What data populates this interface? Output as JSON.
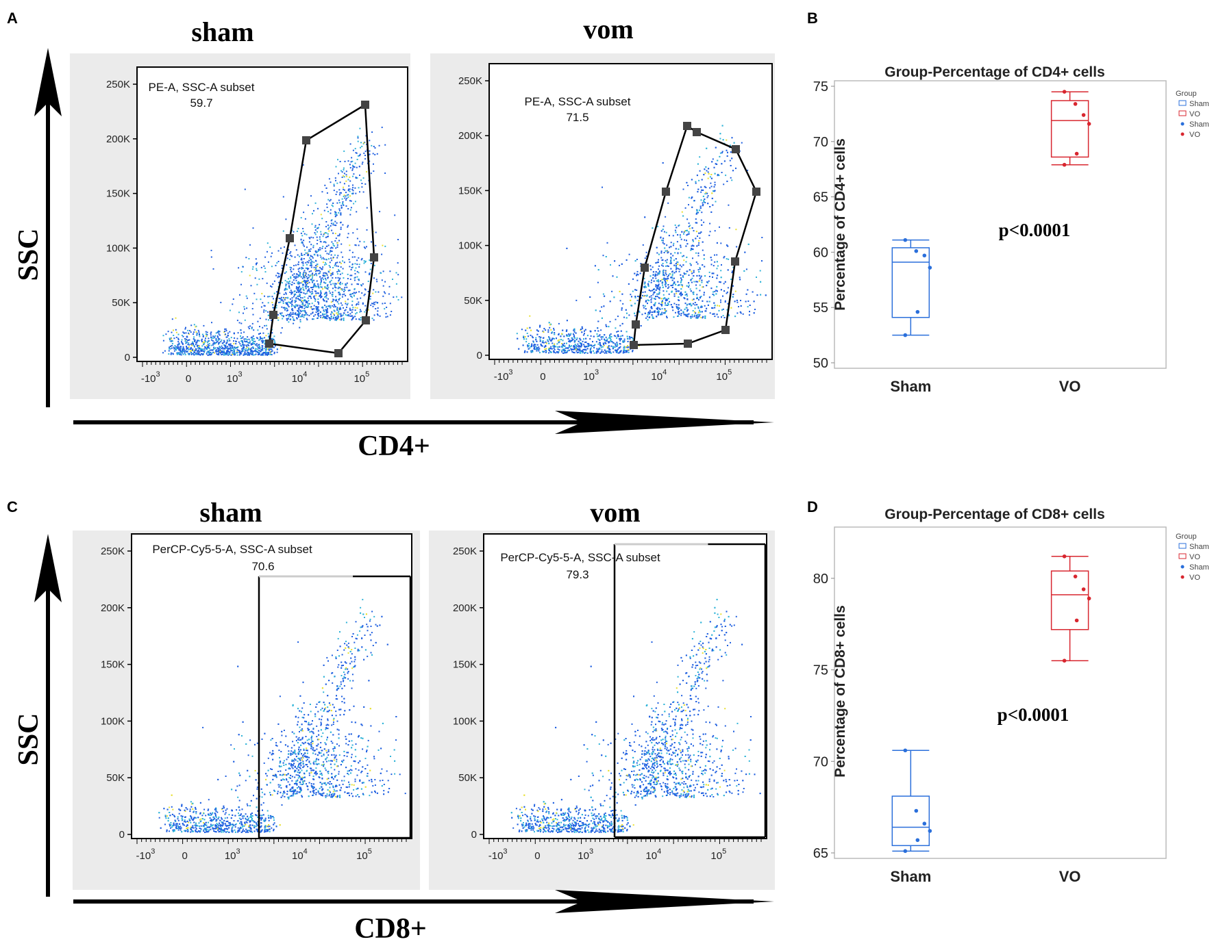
{
  "panels": {
    "a": "A",
    "b": "B",
    "c": "C",
    "d": "D"
  },
  "flow": {
    "ssc_label": "SSC",
    "cd4_axis_label": "CD4+",
    "cd8_axis_label": "CD8+",
    "y_ticks": [
      "250K",
      "200K",
      "150K",
      "100K",
      "50K",
      "0"
    ],
    "x_ticks": [
      {
        "base": "-10",
        "exp": "3"
      },
      {
        "base": "0",
        "exp": ""
      },
      {
        "base": "10",
        "exp": "3"
      },
      {
        "base": "10",
        "exp": "4"
      },
      {
        "base": "10",
        "exp": "5"
      }
    ],
    "plots": [
      {
        "id": "cd4-sham",
        "title": "sham",
        "gate_label": "PE-A, SSC-A subset",
        "gate_value": "59.7"
      },
      {
        "id": "cd4-vom",
        "title": "vom",
        "gate_label": "PE-A, SSC-A subset",
        "gate_value": "71.5"
      },
      {
        "id": "cd8-sham",
        "title": "sham",
        "gate_label": "PerCP-Cy5-5-A, SSC-A subset",
        "gate_value": "70.6"
      },
      {
        "id": "cd8-vom",
        "title": "vom",
        "gate_label": "PerCP-Cy5-5-A, SSC-A subset",
        "gate_value": "79.3"
      }
    ]
  },
  "colors": {
    "sham": "#2a6fdb",
    "vo": "#d8262f",
    "dots_blue": "#1f5fe0",
    "dots_cyan": "#2fb3d8",
    "dots_yellow": "#e8e030",
    "panel_bg": "#ebebeb",
    "gate_node": "#444444"
  },
  "chart_data": [
    {
      "type": "box",
      "title": "Group-Percentage of CD4+ cells",
      "ylabel": "Percentage of CD4+ cells",
      "xlabel": "",
      "ylim": [
        50,
        75
      ],
      "yticks": [
        50,
        55,
        60,
        65,
        70,
        75
      ],
      "categories": [
        "Sham",
        "VO"
      ],
      "legend_title": "Group",
      "legend": [
        "Sham",
        "VO",
        "Sham",
        "VO"
      ],
      "annotation": "p<0.0001",
      "series": [
        {
          "name": "Sham",
          "min": 52.5,
          "q1": 54.1,
          "median": 59.1,
          "q3": 60.4,
          "max": 61.1,
          "points": [
            61.1,
            60.1,
            59.7,
            58.6,
            54.6,
            52.5
          ]
        },
        {
          "name": "VO",
          "min": 67.9,
          "q1": 68.6,
          "median": 71.9,
          "q3": 73.7,
          "max": 74.5,
          "points": [
            74.5,
            73.4,
            72.4,
            71.6,
            68.9,
            67.9
          ]
        }
      ]
    },
    {
      "type": "box",
      "title": "Group-Percentage of CD8+ cells",
      "ylabel": "Percentage of CD8+ cells",
      "xlabel": "",
      "ylim": [
        65,
        82.5
      ],
      "yticks": [
        65,
        70,
        75,
        80
      ],
      "categories": [
        "Sham",
        "VO"
      ],
      "legend_title": "Group",
      "legend": [
        "Sham",
        "VO",
        "Sham",
        "VO"
      ],
      "annotation": "p<0.0001",
      "series": [
        {
          "name": "Sham",
          "min": 65.1,
          "q1": 65.4,
          "median": 66.4,
          "q3": 68.1,
          "max": 70.6,
          "points": [
            70.6,
            67.3,
            66.6,
            66.2,
            65.7,
            65.1
          ]
        },
        {
          "name": "VO",
          "min": 75.5,
          "q1": 77.2,
          "median": 79.1,
          "q3": 80.4,
          "max": 81.2,
          "points": [
            81.2,
            80.1,
            79.4,
            78.9,
            77.7,
            75.5
          ]
        }
      ]
    }
  ]
}
